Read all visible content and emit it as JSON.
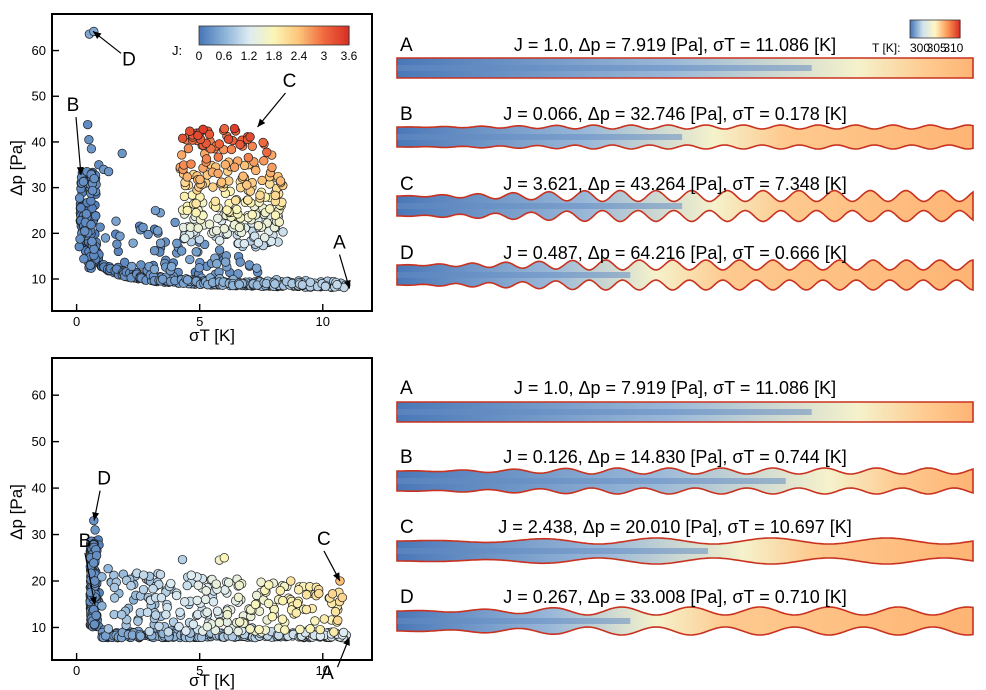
{
  "colorbar_scatter": {
    "label": "J:",
    "ticks": [
      "0",
      "0.6",
      "1.2",
      "1.8",
      "2.4",
      "3",
      "3.6"
    ],
    "range": [
      0,
      3.6
    ],
    "colors": [
      "#4a78b8",
      "#8db3d8",
      "#ddecf3",
      "#fbf5b6",
      "#fdc57a",
      "#f06b3f",
      "#d93126"
    ]
  },
  "colorbar_temperature": {
    "label": "T [K]:",
    "ticks": [
      "300",
      "305",
      "310"
    ],
    "range": [
      297,
      312
    ],
    "colors": [
      "#4a78b8",
      "#cfe3ee",
      "#fff6c4",
      "#fd9a55",
      "#d93126"
    ]
  },
  "chart_data": [
    {
      "type": "scatter",
      "panel": "top",
      "xlabel": "σT [K]",
      "ylabel": "Δp [Pa]",
      "xlim": [
        -1,
        12
      ],
      "ylim": [
        3,
        68
      ],
      "xticks": [
        0,
        5,
        10
      ],
      "yticks": [
        10,
        20,
        30,
        40,
        50,
        60
      ],
      "color_by": "J",
      "annotations": [
        {
          "label": "A",
          "x": 11.086,
          "y": 7.919,
          "J": 1.0
        },
        {
          "label": "B",
          "x": 0.178,
          "y": 32.746,
          "J": 0.066
        },
        {
          "label": "C",
          "x": 7.348,
          "y": 43.264,
          "J": 3.621
        },
        {
          "label": "D",
          "x": 0.666,
          "y": 64.216,
          "J": 0.487
        }
      ]
    },
    {
      "type": "scatter",
      "panel": "bottom",
      "xlabel": "σT [K]",
      "ylabel": "Δp [Pa]",
      "xlim": [
        -1,
        12
      ],
      "ylim": [
        3,
        68
      ],
      "xticks": [
        0,
        5,
        10
      ],
      "yticks": [
        10,
        20,
        30,
        40,
        50,
        60
      ],
      "color_by": "J",
      "annotations": [
        {
          "label": "A",
          "x": 11.086,
          "y": 7.919,
          "J": 1.0
        },
        {
          "label": "B",
          "x": 0.744,
          "y": 14.83,
          "J": 0.126
        },
        {
          "label": "C",
          "x": 10.697,
          "y": 20.01,
          "J": 2.438
        },
        {
          "label": "D",
          "x": 0.71,
          "y": 33.008,
          "J": 0.267
        }
      ]
    }
  ],
  "channels": {
    "top": [
      {
        "letter": "A",
        "text": "J = 1.0,  Δp = 7.919 [Pa],  σT = 11.086 [K]",
        "wiggle": 0,
        "period": 1,
        "hot_start": 0.8
      },
      {
        "letter": "B",
        "text": "J = 0.066,  Δp = 32.746 [Pa],  σT = 0.178 [K]",
        "wiggle": 0.2,
        "period": 0.065,
        "hot_start": 0.55
      },
      {
        "letter": "C",
        "text": "J = 3.621,  Δp = 43.264 [Pa],  σT = 7.348 [K]",
        "wiggle": 0.55,
        "period": 0.062,
        "hot_start": 0.55
      },
      {
        "letter": "D",
        "text": "J = 0.487,  Δp = 64.216 [Pa],  σT = 0.666 [K]",
        "wiggle": 0.5,
        "period": 0.058,
        "hot_start": 0.45
      }
    ],
    "bottom": [
      {
        "letter": "A",
        "text": "J = 1.0,  Δp = 7.919 [Pa],  σT = 11.086 [K]",
        "wiggle": 0,
        "period": 1,
        "hot_start": 0.8
      },
      {
        "letter": "B",
        "text": "J = 0.126,  Δp = 14.830 [Pa],  σT = 0.744 [K]",
        "wiggle": 0.3,
        "period": 0.09,
        "hot_start": 0.75
      },
      {
        "letter": "C",
        "text": "J = 2.438,  Δp = 20.010 [Pa],  σT = 10.697 [K]",
        "wiggle": 0.3,
        "period": 0.2,
        "hot_start": 0.6
      },
      {
        "letter": "D",
        "text": "J = 0.267,  Δp = 33.008 [Pa],  σT = 0.710 [K]",
        "wiggle": 0.4,
        "period": 0.12,
        "hot_start": 0.45
      }
    ]
  }
}
